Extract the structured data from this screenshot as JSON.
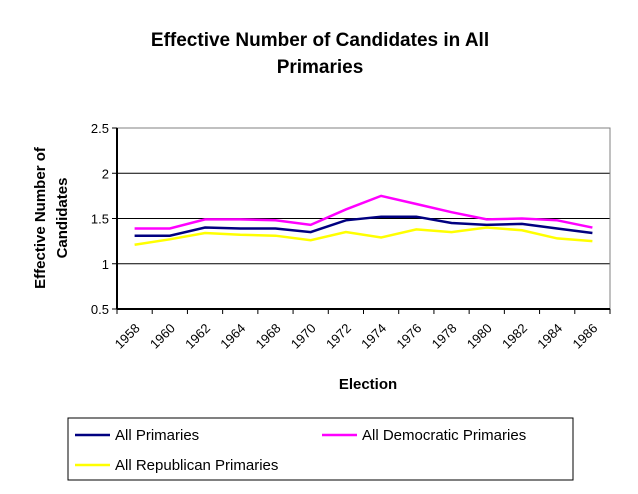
{
  "chart_data": {
    "type": "line",
    "title_lines": [
      "Effective Number of Candidates in All",
      "Primaries"
    ],
    "xlabel": "Election",
    "ylabel_lines": [
      "Effective Number of",
      "Candidates"
    ],
    "ylim": [
      0.5,
      2.5
    ],
    "yticks": [
      "0.5",
      "1",
      "1.5",
      "2",
      "2.5"
    ],
    "ytick_values": [
      0.5,
      1,
      1.5,
      2,
      2.5
    ],
    "grid": true,
    "legend_position": "bottom",
    "categories": [
      "1958",
      "1960",
      "1962",
      "1964",
      "1968",
      "1970",
      "1972",
      "1974",
      "1976",
      "1978",
      "1980",
      "1982",
      "1984",
      "1986"
    ],
    "series": [
      {
        "name": "All Primaries",
        "color": "#000080",
        "values": [
          1.31,
          1.31,
          1.4,
          1.39,
          1.39,
          1.35,
          1.48,
          1.52,
          1.52,
          1.45,
          1.43,
          1.44,
          1.39,
          1.34
        ]
      },
      {
        "name": "All Democratic Primaries",
        "color": "#FF00FF",
        "values": [
          1.39,
          1.39,
          1.49,
          1.49,
          1.48,
          1.43,
          1.6,
          1.75,
          1.66,
          1.57,
          1.49,
          1.5,
          1.48,
          1.4
        ]
      },
      {
        "name": "All Republican Primaries",
        "color": "#FFFF00",
        "values": [
          1.21,
          1.27,
          1.34,
          1.32,
          1.31,
          1.26,
          1.35,
          1.29,
          1.38,
          1.35,
          1.4,
          1.37,
          1.28,
          1.25
        ]
      }
    ]
  }
}
